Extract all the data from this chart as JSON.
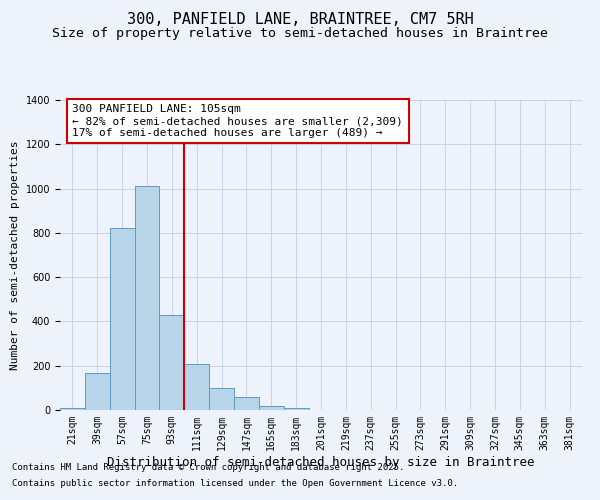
{
  "title": "300, PANFIELD LANE, BRAINTREE, CM7 5RH",
  "subtitle": "Size of property relative to semi-detached houses in Braintree",
  "xlabel": "Distribution of semi-detached houses by size in Braintree",
  "ylabel": "Number of semi-detached properties",
  "footnote1": "Contains HM Land Registry data © Crown copyright and database right 2025.",
  "footnote2": "Contains public sector information licensed under the Open Government Licence v3.0.",
  "annotation_title": "300 PANFIELD LANE: 105sqm",
  "annotation_line1": "← 82% of semi-detached houses are smaller (2,309)",
  "annotation_line2": "17% of semi-detached houses are larger (489) →",
  "bar_labels": [
    "21sqm",
    "39sqm",
    "57sqm",
    "75sqm",
    "93sqm",
    "111sqm",
    "129sqm",
    "147sqm",
    "165sqm",
    "183sqm",
    "201sqm",
    "219sqm",
    "237sqm",
    "255sqm",
    "273sqm",
    "291sqm",
    "309sqm",
    "327sqm",
    "345sqm",
    "363sqm",
    "381sqm"
  ],
  "bar_values": [
    10,
    165,
    820,
    1010,
    430,
    210,
    100,
    58,
    20,
    8,
    2,
    0,
    0,
    0,
    0,
    0,
    0,
    0,
    0,
    0,
    0
  ],
  "bar_color": "#b8d4e8",
  "bar_edge_color": "#5b9bc8",
  "vline_index": 5,
  "vline_color": "#cc0000",
  "ylim": [
    0,
    1400
  ],
  "yticks": [
    0,
    200,
    400,
    600,
    800,
    1000,
    1200,
    1400
  ],
  "grid_color": "#c8d4e8",
  "background_color": "#edf2fb",
  "annotation_box_facecolor": "#ffffff",
  "annotation_box_edgecolor": "#cc0000",
  "title_fontsize": 11,
  "subtitle_fontsize": 9.5,
  "ylabel_fontsize": 8,
  "xlabel_fontsize": 9,
  "tick_fontsize": 7,
  "annotation_fontsize": 8,
  "footnote_fontsize": 6.5
}
